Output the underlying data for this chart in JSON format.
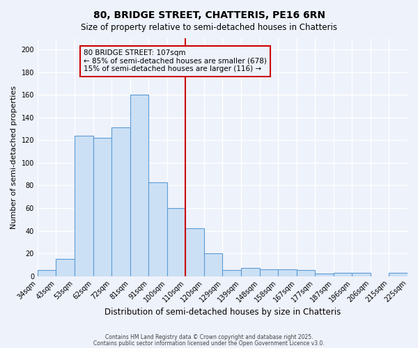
{
  "title": "80, BRIDGE STREET, CHATTERIS, PE16 6RN",
  "subtitle": "Size of property relative to semi-detached houses in Chatteris",
  "xlabel": "Distribution of semi-detached houses by size in Chatteris",
  "ylabel": "Number of semi-detached properties",
  "bin_labels": [
    "34sqm",
    "43sqm",
    "53sqm",
    "62sqm",
    "72sqm",
    "81sqm",
    "91sqm",
    "100sqm",
    "110sqm",
    "120sqm",
    "129sqm",
    "139sqm",
    "148sqm",
    "158sqm",
    "167sqm",
    "177sqm",
    "187sqm",
    "196sqm",
    "206sqm",
    "215sqm",
    "225sqm"
  ],
  "bin_counts": [
    5,
    15,
    124,
    122,
    131,
    160,
    83,
    60,
    42,
    20,
    5,
    7,
    6,
    6,
    5,
    2,
    3,
    3,
    0,
    3
  ],
  "bar_color": "#cce0f5",
  "bar_edge_color": "#5b9bd5",
  "vline_color": "#cc0000",
  "annotation_title": "80 BRIDGE STREET: 107sqm",
  "annotation_line1": "← 85% of semi-detached houses are smaller (678)",
  "annotation_line2": "15% of semi-detached houses are larger (116) →",
  "annotation_box_edge": "#cc0000",
  "ylim": [
    0,
    210
  ],
  "yticks": [
    0,
    20,
    40,
    60,
    80,
    100,
    120,
    140,
    160,
    180,
    200
  ],
  "footer1": "Contains HM Land Registry data © Crown copyright and database right 2025.",
  "footer2": "Contains public sector information licensed under the Open Government Licence v3.0.",
  "background_color": "#eef2fb",
  "grid_color": "#ffffff"
}
